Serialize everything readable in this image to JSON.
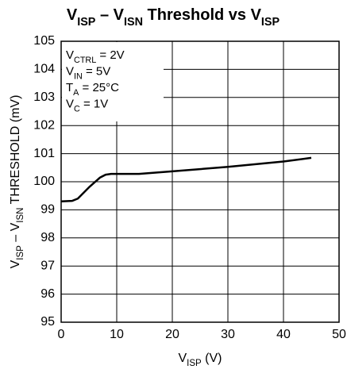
{
  "chart_data": {
    "type": "line",
    "title": [
      "V",
      "ISP",
      " – V",
      "ISN",
      " Threshold vs V",
      "ISP"
    ],
    "x_label": [
      "V",
      "ISP",
      " (V)"
    ],
    "y_label": [
      "V",
      "ISP",
      " – V",
      "ISN",
      " THRESHOLD (mV)"
    ],
    "annotations": [
      [
        "V",
        "CTRL",
        " = 2V"
      ],
      [
        "V",
        "IN",
        " = 5V"
      ],
      [
        "T",
        "A",
        " = 25°C"
      ],
      [
        "V",
        "C",
        " = 1V"
      ]
    ],
    "xlim": [
      0,
      50
    ],
    "xticks": [
      0,
      10,
      20,
      30,
      40,
      50
    ],
    "ylim": [
      95,
      105
    ],
    "yticks": [
      95,
      96,
      97,
      98,
      99,
      100,
      101,
      102,
      103,
      104,
      105
    ],
    "grid": true,
    "series": [
      {
        "color": "#000000",
        "x": [
          0,
          2,
          3,
          5,
          7,
          8,
          9,
          14,
          20,
          30,
          40,
          45
        ],
        "values": [
          99.3,
          99.32,
          99.4,
          99.8,
          100.15,
          100.25,
          100.28,
          100.28,
          100.37,
          100.53,
          100.72,
          100.85
        ]
      }
    ]
  }
}
